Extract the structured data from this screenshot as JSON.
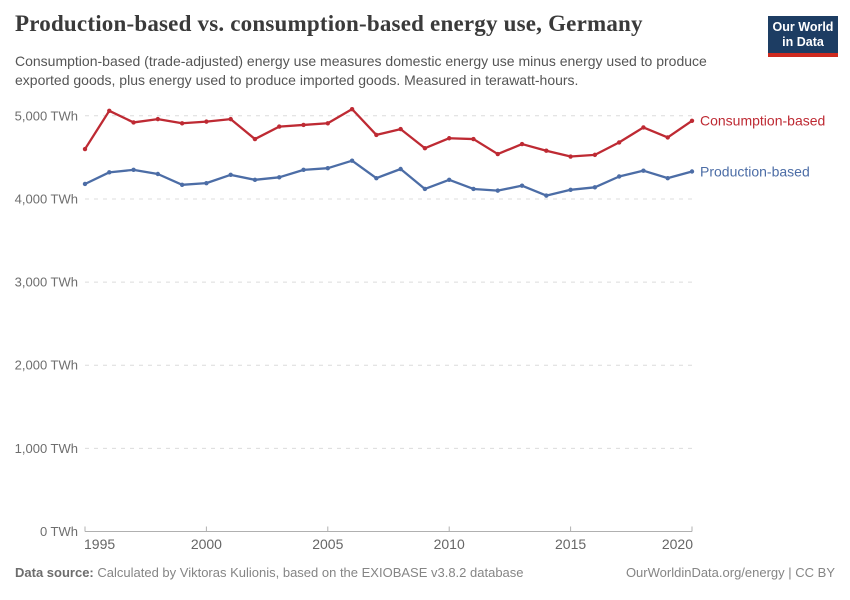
{
  "header": {
    "title": "Production-based vs. consumption-based energy use, Germany",
    "subtitle": "Consumption-based (trade-adjusted) energy use measures domestic energy use minus energy used to produce exported goods, plus energy used to produce imported goods. Measured in terawatt-hours.",
    "logo": {
      "line1": "Our World",
      "line2": "in Data",
      "bg_color": "#1d3d63",
      "stripe_color": "#ce2a1f"
    }
  },
  "chart_data": {
    "type": "line",
    "title": "Production-based vs. consumption-based energy use, Germany",
    "xlabel": "",
    "ylabel": "TWh",
    "xlim": [
      1995,
      2020
    ],
    "ylim": [
      0,
      5000
    ],
    "grid": "horizontal dashed",
    "legend_position": "end-of-line labels",
    "x": [
      1995,
      1996,
      1997,
      1998,
      1999,
      2000,
      2001,
      2002,
      2003,
      2004,
      2005,
      2006,
      2007,
      2008,
      2009,
      2010,
      2011,
      2012,
      2013,
      2014,
      2015,
      2016,
      2017,
      2018,
      2019,
      2020
    ],
    "xticks": [
      1995,
      2000,
      2005,
      2010,
      2015,
      2020
    ],
    "yticks": [
      {
        "value": 0,
        "label": "0 TWh"
      },
      {
        "value": 1000,
        "label": "1,000 TWh"
      },
      {
        "value": 2000,
        "label": "2,000 TWh"
      },
      {
        "value": 3000,
        "label": "3,000 TWh"
      },
      {
        "value": 4000,
        "label": "4,000 TWh"
      },
      {
        "value": 5000,
        "label": "5,000 TWh"
      }
    ],
    "series": [
      {
        "name": "Consumption-based",
        "color": "#be2a33",
        "values": [
          4600,
          5060,
          4920,
          4960,
          4910,
          4930,
          4960,
          4720,
          4870,
          4890,
          4910,
          5080,
          4770,
          4840,
          4610,
          4730,
          4720,
          4540,
          4660,
          4580,
          4510,
          4530,
          4680,
          4860,
          4740,
          4940
        ]
      },
      {
        "name": "Production-based",
        "color": "#4c6da6",
        "values": [
          4180,
          4320,
          4350,
          4300,
          4170,
          4190,
          4290,
          4230,
          4260,
          4350,
          4370,
          4460,
          4250,
          4360,
          4120,
          4230,
          4120,
          4100,
          4160,
          4040,
          4110,
          4140,
          4270,
          4340,
          4250,
          4330
        ]
      }
    ]
  },
  "footer": {
    "source_label": "Data source:",
    "source_text": "Calculated by Viktoras Kulionis, based on the EXIOBASE v3.8.2 database",
    "credit": "OurWorldinData.org/energy | CC BY"
  }
}
